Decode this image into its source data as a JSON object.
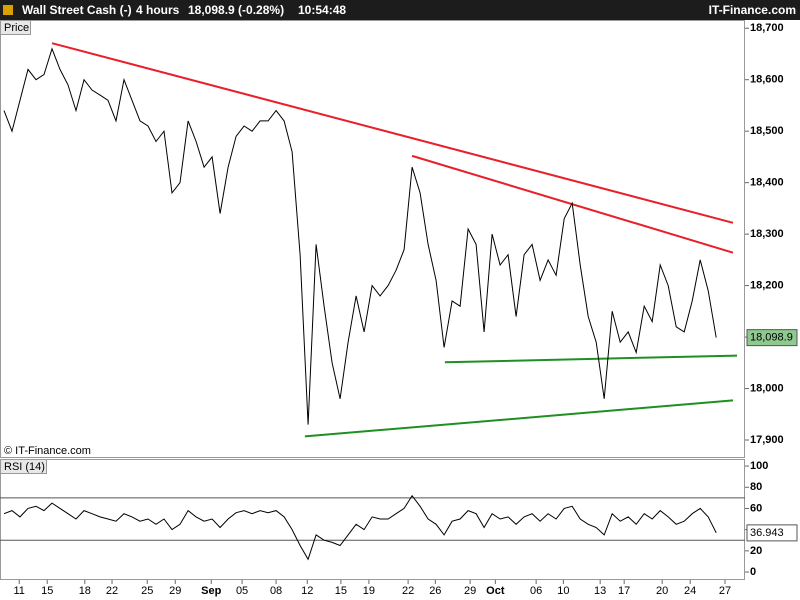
{
  "header": {
    "instrument": "Wall Street Cash (-)",
    "interval": "4 hours",
    "quote": "18,098.9 (-0.28%)",
    "time": "10:54:48",
    "brand": "IT-Finance.com"
  },
  "chart_data": [
    {
      "type": "line",
      "panel_label": "Price",
      "credit": "© IT-Finance.com",
      "series": [
        {
          "color": "#000000",
          "values": [
            18540,
            18500,
            18560,
            18620,
            18600,
            18610,
            18660,
            18620,
            18590,
            18540,
            18600,
            18580,
            18570,
            18560,
            18520,
            18600,
            18560,
            18520,
            18510,
            18480,
            18500,
            18380,
            18400,
            18520,
            18480,
            18430,
            18450,
            18340,
            18430,
            18490,
            18510,
            18500,
            18520,
            18520,
            18540,
            18520,
            18460,
            18260,
            17930,
            18280,
            18160,
            18050,
            17980,
            18090,
            18180,
            18110,
            18200,
            18180,
            18200,
            18230,
            18270,
            18430,
            18380,
            18280,
            18210,
            18080,
            18170,
            18160,
            18310,
            18280,
            18110,
            18300,
            18240,
            18260,
            18140,
            18260,
            18280,
            18210,
            18250,
            18220,
            18330,
            18360,
            18240,
            18140,
            18090,
            17980,
            18150,
            18090,
            18110,
            18070,
            18160,
            18130,
            18240,
            18200,
            18120,
            18110,
            18170,
            18250,
            18190,
            18099
          ]
        }
      ],
      "last_price": {
        "value": 18098.9,
        "label": "18,098.9"
      },
      "last_color": "#8fc98f",
      "trendlines": [
        {
          "color": "#e8202a",
          "x": [
            6,
            91.1
          ],
          "y": [
            18671,
            18322
          ]
        },
        {
          "color": "#e8202a",
          "x": [
            51,
            91.1
          ],
          "y": [
            18452,
            18264
          ]
        },
        {
          "color": "#1f8f1f",
          "x": [
            37.6,
            91.1
          ],
          "y": [
            17907,
            17977
          ]
        },
        {
          "color": "#1f8f1f",
          "x": [
            55.1,
            91.6
          ],
          "y": [
            18051,
            18064
          ]
        }
      ],
      "xlim": [
        -0.5,
        92.6
      ],
      "ylim": [
        17867,
        18716
      ],
      "yticks": [
        {
          "value": 18700,
          "label": "18,700"
        },
        {
          "value": 18600,
          "label": "18,600"
        },
        {
          "value": 18500,
          "label": "18,500"
        },
        {
          "value": 18400,
          "label": "18,400"
        },
        {
          "value": 18300,
          "label": "18,300"
        },
        {
          "value": 18200,
          "label": "18,200"
        },
        {
          "value": 18100,
          "label": "18,100"
        },
        {
          "value": 18000,
          "label": "18,000"
        },
        {
          "value": 17900,
          "label": "17,900"
        }
      ],
      "xticks": [
        {
          "value": 1.9,
          "label": "11"
        },
        {
          "value": 5.4,
          "label": "15"
        },
        {
          "value": 10.1,
          "label": "18"
        },
        {
          "value": 13.5,
          "label": "22"
        },
        {
          "value": 17.9,
          "label": "25"
        },
        {
          "value": 21.4,
          "label": "29"
        },
        {
          "value": 25.9,
          "label": "Sep"
        },
        {
          "value": 29.75,
          "label": "05"
        },
        {
          "value": 34,
          "label": "08"
        },
        {
          "value": 37.9,
          "label": "12"
        },
        {
          "value": 42.1,
          "label": "15"
        },
        {
          "value": 45.6,
          "label": "19"
        },
        {
          "value": 50.5,
          "label": "22"
        },
        {
          "value": 53.9,
          "label": "26"
        },
        {
          "value": 58.25,
          "label": "29"
        },
        {
          "value": 61.4,
          "label": "Oct"
        },
        {
          "value": 66.5,
          "label": "06"
        },
        {
          "value": 69.9,
          "label": "10"
        },
        {
          "value": 74.5,
          "label": "13"
        },
        {
          "value": 77.5,
          "label": "17"
        },
        {
          "value": 82.25,
          "label": "20"
        },
        {
          "value": 85.75,
          "label": "24"
        },
        {
          "value": 90.1,
          "label": "27"
        }
      ]
    },
    {
      "type": "line",
      "panel_label": "RSI (14)",
      "series": [
        {
          "color": "#000000",
          "values": [
            55,
            58,
            52,
            60,
            62,
            58,
            65,
            60,
            55,
            50,
            58,
            55,
            52,
            50,
            48,
            55,
            52,
            48,
            50,
            45,
            50,
            40,
            45,
            58,
            52,
            48,
            50,
            42,
            50,
            56,
            58,
            55,
            58,
            56,
            58,
            52,
            40,
            25,
            12,
            35,
            30,
            28,
            25,
            35,
            45,
            40,
            52,
            50,
            50,
            55,
            60,
            72,
            62,
            50,
            45,
            35,
            48,
            50,
            58,
            55,
            42,
            55,
            50,
            52,
            45,
            52,
            55,
            48,
            55,
            50,
            60,
            62,
            50,
            45,
            42,
            35,
            55,
            48,
            52,
            45,
            55,
            50,
            58,
            52,
            45,
            48,
            55,
            60,
            52,
            37
          ]
        }
      ],
      "last_value": {
        "value": 36.943,
        "label": "36.943"
      },
      "levels": [
        70,
        30
      ],
      "xlim": [
        -0.5,
        92.6
      ],
      "ylim": [
        -7.5,
        105.7
      ],
      "yticks": [
        100,
        80,
        60,
        40,
        20,
        0
      ]
    }
  ]
}
